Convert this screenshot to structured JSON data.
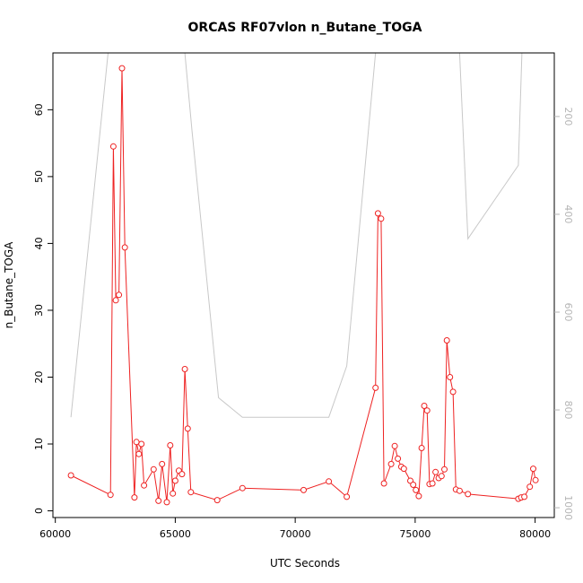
{
  "chart_data": {
    "type": "line",
    "title": "ORCAS RF07vlon n_Butane_TOGA",
    "xlabel": "UTC Seconds",
    "ylabel": "n_Butane_TOGA",
    "xlim": [
      59900,
      80800
    ],
    "ylim": [
      -1,
      68.5
    ],
    "x_ticks": [
      60000,
      65000,
      70000,
      75000,
      80000
    ],
    "y_ticks": [
      0,
      10,
      20,
      30,
      40,
      50,
      60
    ],
    "y2_ticks": [
      200,
      400,
      600,
      800,
      1000
    ],
    "y2_scale": {
      "top": 70,
      "bottom": 1020
    },
    "colors": {
      "series": "#ee2222",
      "secondary": "#c8c8c8",
      "axes": "#000000",
      "y2_ticks": "#b5b5b5"
    },
    "series": [
      {
        "values": [
          [
            60650,
            5.3
          ],
          [
            62300,
            2.4
          ],
          [
            62420,
            54.5
          ],
          [
            62520,
            31.5
          ],
          [
            62650,
            32.3
          ],
          [
            62780,
            66.2
          ],
          [
            62900,
            39.4
          ],
          [
            63300,
            2.0
          ],
          [
            63380,
            10.3
          ],
          [
            63480,
            8.5
          ],
          [
            63590,
            10.0
          ],
          [
            63700,
            3.8
          ],
          [
            64100,
            6.2
          ],
          [
            64300,
            1.5
          ],
          [
            64450,
            7.0
          ],
          [
            64650,
            1.3
          ],
          [
            64790,
            9.8
          ],
          [
            64900,
            2.6
          ],
          [
            65000,
            4.5
          ],
          [
            65150,
            6.0
          ],
          [
            65280,
            5.5
          ],
          [
            65400,
            21.2
          ],
          [
            65520,
            12.3
          ],
          [
            65650,
            2.8
          ],
          [
            66750,
            1.6
          ],
          [
            67800,
            3.4
          ],
          [
            70350,
            3.1
          ],
          [
            71400,
            4.4
          ],
          [
            72150,
            2.1
          ],
          [
            73350,
            18.4
          ],
          [
            73450,
            44.5
          ],
          [
            73580,
            43.7
          ],
          [
            73700,
            4.1
          ],
          [
            74000,
            7.0
          ],
          [
            74150,
            9.7
          ],
          [
            74280,
            7.8
          ],
          [
            74420,
            6.6
          ],
          [
            74530,
            6.3
          ],
          [
            74800,
            4.5
          ],
          [
            74920,
            3.9
          ],
          [
            75030,
            3.1
          ],
          [
            75150,
            2.2
          ],
          [
            75270,
            9.4
          ],
          [
            75380,
            15.7
          ],
          [
            75500,
            15.0
          ],
          [
            75600,
            4.0
          ],
          [
            75720,
            4.1
          ],
          [
            75850,
            5.8
          ],
          [
            75980,
            4.9
          ],
          [
            76100,
            5.2
          ],
          [
            76220,
            6.2
          ],
          [
            76320,
            25.5
          ],
          [
            76450,
            20.0
          ],
          [
            76580,
            17.8
          ],
          [
            76700,
            3.2
          ],
          [
            76850,
            3.0
          ],
          [
            77200,
            2.5
          ],
          [
            79300,
            1.8
          ],
          [
            79420,
            2.0
          ],
          [
            79550,
            2.1
          ],
          [
            79780,
            3.6
          ],
          [
            79920,
            6.3
          ],
          [
            80020,
            4.6
          ]
        ]
      },
      {
        "values": [
          [
            60650,
            815
          ],
          [
            62200,
            70
          ],
          [
            62300,
            70
          ],
          [
            65400,
            70
          ],
          [
            65700,
            230
          ],
          [
            66800,
            775
          ],
          [
            67800,
            815
          ],
          [
            71400,
            815
          ],
          [
            72150,
            710
          ],
          [
            73350,
            70
          ],
          [
            73450,
            70
          ],
          [
            76850,
            70
          ],
          [
            77200,
            450
          ],
          [
            79300,
            300
          ],
          [
            79450,
            70
          ]
        ]
      }
    ]
  }
}
